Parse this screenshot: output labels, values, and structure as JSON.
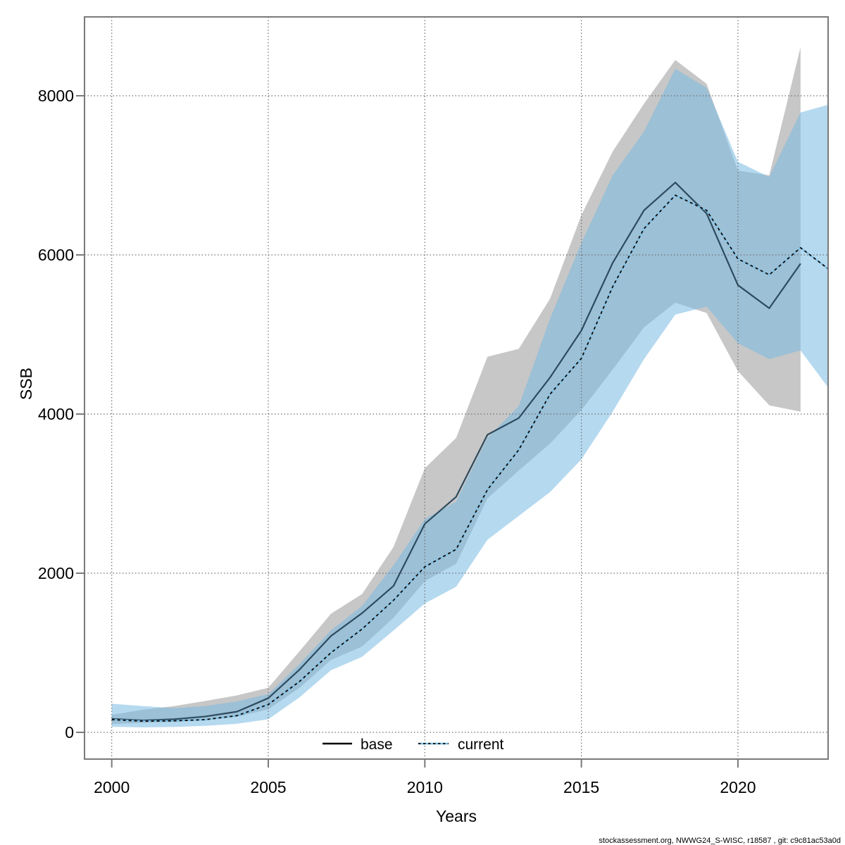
{
  "footer": {
    "text": "stockassessment.org, NWWG24_S-WISC, r18587 , git: c9c81ac53a0d"
  },
  "colors": {
    "frame": "#7a7a7a",
    "grid": "#6e6e6e",
    "base_band": "rgba(130,130,130,0.45)",
    "current_band": "rgba(120,185,225,0.55)",
    "base_line": "#2d4b5f",
    "base_legend_line": "#000000",
    "current_line_blue": "#7fc0e4",
    "current_line_dash": "#0b0b0b"
  },
  "chart_data": {
    "type": "line",
    "title": "",
    "xlabel": "Years",
    "ylabel": "SSB",
    "x_ticks": [
      2000,
      2005,
      2010,
      2015,
      2020
    ],
    "y_ticks": [
      0,
      2000,
      4000,
      6000,
      8000
    ],
    "xlim": [
      1999.13,
      2022.88
    ],
    "ylim": [
      -336,
      8991
    ],
    "grid": "dotted-both",
    "legend_position": "bottom-center-inside",
    "series": [
      {
        "name": "base",
        "line_style": "solid",
        "band": "gray",
        "years": [
          2000,
          2001,
          2002,
          2003,
          2004,
          2005,
          2006,
          2007,
          2008,
          2009,
          2010,
          2011,
          2012,
          2013,
          2014,
          2015,
          2016,
          2017,
          2018,
          2019,
          2020,
          2021,
          2022
        ],
        "mean": [
          170,
          150,
          165,
          200,
          260,
          430,
          790,
          1210,
          1500,
          1840,
          2620,
          2960,
          3740,
          3950,
          4460,
          5050,
          5900,
          6560,
          6910,
          6520,
          5620,
          5330,
          5890
        ],
        "lo": [
          105,
          120,
          130,
          155,
          195,
          290,
          560,
          910,
          1080,
          1440,
          1900,
          2120,
          2940,
          3290,
          3630,
          4050,
          4560,
          5090,
          5400,
          5270,
          4540,
          4110,
          4030
        ],
        "hi": [
          220,
          285,
          330,
          395,
          465,
          560,
          1020,
          1490,
          1740,
          2330,
          3320,
          3700,
          4720,
          4820,
          5450,
          6500,
          7300,
          7900,
          8450,
          8150,
          7060,
          7000,
          8610
        ]
      },
      {
        "name": "current",
        "line_style": "dotted",
        "band": "lightblue",
        "years": [
          2000,
          2001,
          2002,
          2003,
          2004,
          2005,
          2006,
          2007,
          2008,
          2009,
          2010,
          2011,
          2012,
          2013,
          2014,
          2015,
          2016,
          2017,
          2018,
          2019,
          2020,
          2021,
          2022,
          2023
        ],
        "mean": [
          160,
          140,
          145,
          160,
          210,
          350,
          640,
          1000,
          1300,
          1660,
          2080,
          2300,
          3050,
          3550,
          4250,
          4700,
          5600,
          6330,
          6750,
          6560,
          5950,
          5750,
          6090,
          5790
        ],
        "lo": [
          70,
          62,
          68,
          82,
          108,
          165,
          440,
          780,
          950,
          1280,
          1620,
          1830,
          2420,
          2720,
          3020,
          3430,
          4030,
          4690,
          5250,
          5350,
          4890,
          4690,
          4800,
          4270
        ],
        "hi": [
          360,
          330,
          305,
          330,
          390,
          480,
          860,
          1280,
          1590,
          2100,
          2680,
          2900,
          3700,
          4100,
          5200,
          6150,
          7000,
          7550,
          8340,
          8100,
          7170,
          6980,
          7790,
          7900
        ]
      }
    ]
  }
}
